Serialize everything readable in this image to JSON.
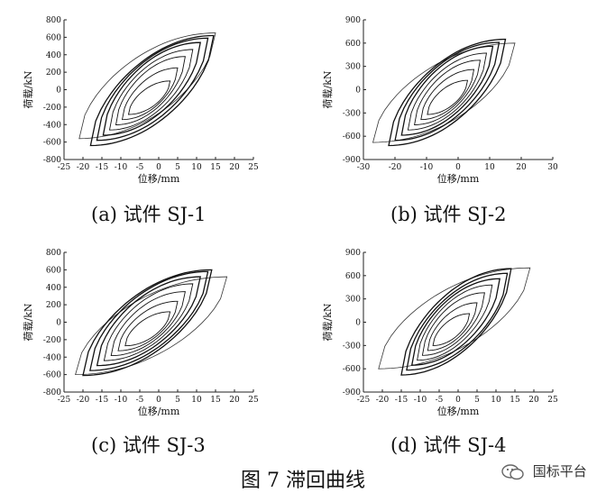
{
  "figure_title": "图 7 滞回曲线",
  "watermark": "国标平台",
  "chart_data": [
    {
      "type": "line",
      "caption": "(a)  试件 SJ-1",
      "xlabel": "位移/mm",
      "ylabel": "荷载/kN",
      "xlim": [
        -25,
        25
      ],
      "ylim": [
        -800,
        800
      ],
      "xticks": [
        -25,
        -20,
        -15,
        -10,
        -5,
        0,
        5,
        10,
        15,
        20,
        25
      ],
      "yticks": [
        -800,
        -600,
        -400,
        -200,
        0,
        200,
        400,
        600,
        800
      ],
      "loops": [
        [
          3,
          100
        ],
        [
          5,
          250
        ],
        [
          7,
          380
        ],
        [
          9,
          460
        ],
        [
          11,
          540
        ],
        [
          13,
          590
        ],
        [
          14.5,
          620
        ]
      ],
      "min_x": -18,
      "min_y": -640,
      "envelope": {
        "pos_x": 15,
        "pos_y": 650,
        "neg_x": -21,
        "neg_y": -560
      }
    },
    {
      "type": "line",
      "caption": "(b)  试件 SJ-2",
      "xlabel": "位移/mm",
      "ylabel": "荷载/kN",
      "xlim": [
        -30,
        30
      ],
      "ylim": [
        -900,
        900
      ],
      "xticks": [
        -30,
        -20,
        -10,
        0,
        10,
        20,
        30
      ],
      "yticks": [
        -900,
        -600,
        -300,
        0,
        300,
        600,
        900
      ],
      "loops": [
        [
          3,
          120
        ],
        [
          5,
          260
        ],
        [
          7,
          380
        ],
        [
          9,
          470
        ],
        [
          11,
          560
        ],
        [
          13,
          610
        ],
        [
          15,
          650
        ]
      ],
      "min_x": -22,
      "min_y": -720,
      "envelope": {
        "pos_x": 18,
        "pos_y": 600,
        "neg_x": -27,
        "neg_y": -680
      }
    },
    {
      "type": "line",
      "caption": "(c)  试件 SJ-3",
      "xlabel": "位移/mm",
      "ylabel": "荷载/kN",
      "xlim": [
        -25,
        25
      ],
      "ylim": [
        -800,
        800
      ],
      "xticks": [
        -25,
        -20,
        -15,
        -10,
        -5,
        0,
        5,
        10,
        15,
        20,
        25
      ],
      "yticks": [
        -800,
        -600,
        -400,
        -200,
        0,
        200,
        400,
        600,
        800
      ],
      "loops": [
        [
          3,
          120
        ],
        [
          5,
          240
        ],
        [
          7,
          350
        ],
        [
          9,
          440
        ],
        [
          11,
          520
        ],
        [
          13,
          580
        ],
        [
          14,
          600
        ]
      ],
      "min_x": -20,
      "min_y": -610,
      "envelope": {
        "pos_x": 18,
        "pos_y": 520,
        "neg_x": -22,
        "neg_y": -600
      }
    },
    {
      "type": "line",
      "caption": "(d)  试件 SJ-4",
      "xlabel": "位移/mm",
      "ylabel": "荷载/kN",
      "xlim": [
        -25,
        25
      ],
      "ylim": [
        -900,
        900
      ],
      "xticks": [
        -25,
        -20,
        -15,
        -10,
        -5,
        0,
        5,
        10,
        15,
        20,
        25
      ],
      "yticks": [
        -900,
        -600,
        -300,
        0,
        300,
        600,
        900
      ],
      "loops": [
        [
          3,
          110
        ],
        [
          5,
          250
        ],
        [
          7,
          380
        ],
        [
          9,
          480
        ],
        [
          11,
          560
        ],
        [
          13,
          630
        ],
        [
          14,
          690
        ]
      ],
      "min_x": -15,
      "min_y": -680,
      "envelope": {
        "pos_x": 19,
        "pos_y": 700,
        "neg_x": -21,
        "neg_y": -600
      }
    }
  ]
}
